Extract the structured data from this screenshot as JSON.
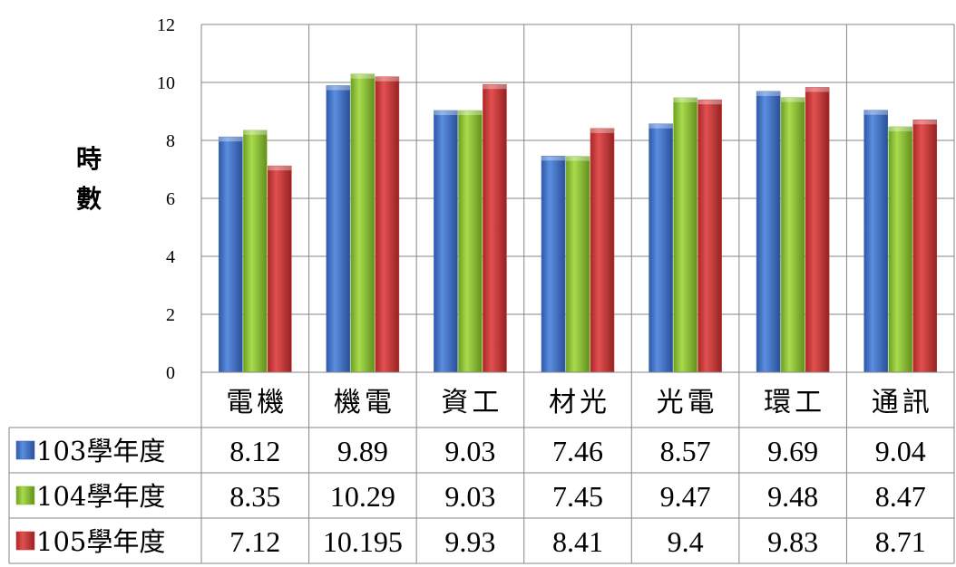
{
  "chart_data": {
    "type": "bar",
    "title": "",
    "xlabel": "",
    "ylabel": "時數",
    "ylim": [
      0,
      12
    ],
    "yticks": [
      0,
      2,
      4,
      6,
      8,
      10,
      12
    ],
    "grid": true,
    "legend": "data-table",
    "categories": [
      "電機",
      "機電",
      "資工",
      "材光",
      "光電",
      "環工",
      "通訊"
    ],
    "series": [
      {
        "name": "103學年度",
        "color": "#3f6fc2",
        "values": [
          8.12,
          9.89,
          9.03,
          7.46,
          8.57,
          9.69,
          9.04
        ],
        "labels": [
          "8.12",
          "9.89",
          "9.03",
          "7.46",
          "8.57",
          "9.69",
          "9.04"
        ]
      },
      {
        "name": "104學年度",
        "color": "#8cbf3a",
        "values": [
          8.35,
          10.29,
          9.03,
          7.45,
          9.47,
          9.48,
          8.47
        ],
        "labels": [
          "8.35",
          "10.29",
          "9.03",
          "7.45",
          "9.47",
          "9.48",
          "8.47"
        ]
      },
      {
        "name": "105學年度",
        "color": "#c83a3a",
        "values": [
          7.12,
          10.195,
          9.93,
          8.41,
          9.4,
          9.83,
          8.71
        ],
        "labels": [
          "7.12",
          "10.195",
          "9.93",
          "8.41",
          "9.4",
          "9.83",
          "8.71"
        ]
      }
    ]
  }
}
